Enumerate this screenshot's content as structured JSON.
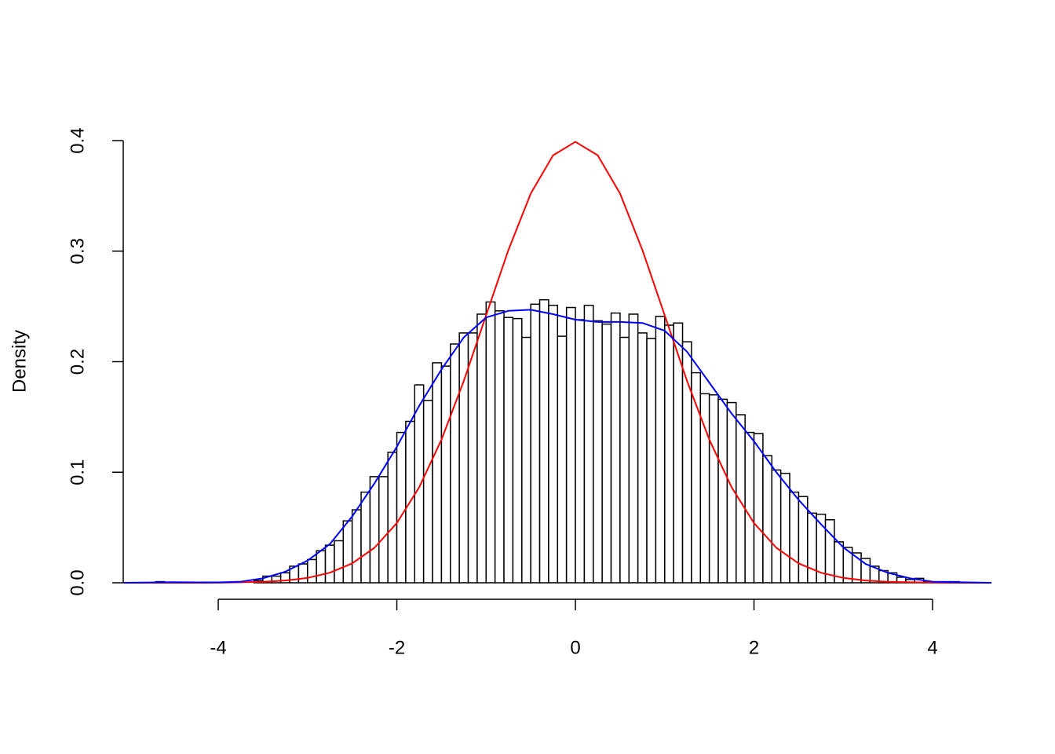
{
  "chart_data": {
    "type": "histogram",
    "y_label": "Density",
    "color": "#000000",
    "fill": "#ffffff",
    "bins": [
      -4.7,
      -4.6,
      -4.5,
      -4.4,
      -4.3,
      -4.2,
      -4.1,
      -4.0,
      -3.9,
      -3.8,
      -3.7,
      -3.6,
      -3.5,
      -3.4,
      -3.3,
      -3.2,
      -3.1,
      -3.0,
      -2.9,
      -2.8,
      -2.7,
      -2.6,
      -2.5,
      -2.4,
      -2.3,
      -2.2,
      -2.1,
      -2.0,
      -1.9,
      -1.8,
      -1.7,
      -1.6,
      -1.5,
      -1.4,
      -1.3,
      -1.2,
      -1.1,
      -1.0,
      -0.9,
      -0.8,
      -0.7,
      -0.6,
      -0.5,
      -0.4,
      -0.3,
      -0.2,
      -0.1,
      0.0,
      0.1,
      0.2,
      0.3,
      0.4,
      0.5,
      0.6,
      0.7,
      0.8,
      0.9,
      1.0,
      1.1,
      1.2,
      1.3,
      1.4,
      1.5,
      1.6,
      1.7,
      1.8,
      1.9,
      2.0,
      2.1,
      2.2,
      2.3,
      2.4,
      2.5,
      2.6,
      2.7,
      2.8,
      2.9,
      3.0,
      3.1,
      3.2,
      3.3,
      3.4,
      3.5,
      3.6,
      3.7,
      3.8,
      3.9,
      4.0,
      4.1,
      4.2,
      4.3
    ],
    "values": [
      0.001,
      0,
      0,
      0,
      0,
      0,
      0,
      0,
      0,
      0,
      0,
      0.002,
      0.006,
      0.006,
      0.009,
      0.015,
      0.017,
      0.021,
      0.029,
      0.034,
      0.038,
      0.056,
      0.066,
      0.082,
      0.096,
      0.096,
      0.118,
      0.136,
      0.146,
      0.179,
      0.165,
      0.199,
      0.196,
      0.216,
      0.226,
      0.226,
      0.243,
      0.254,
      0.246,
      0.24,
      0.239,
      0.222,
      0.252,
      0.256,
      0.251,
      0.223,
      0.249,
      0.238,
      0.251,
      0.237,
      0.234,
      0.244,
      0.222,
      0.243,
      0.226,
      0.221,
      0.241,
      0.233,
      0.235,
      0.218,
      0.19,
      0.171,
      0.17,
      0.166,
      0.163,
      0.152,
      0.136,
      0.135,
      0.115,
      0.102,
      0.099,
      0.082,
      0.078,
      0.063,
      0.062,
      0.057,
      0.037,
      0.032,
      0.027,
      0.022,
      0.015,
      0.011,
      0.009,
      0.005,
      0.003,
      0.004,
      0.001,
      0,
      0.001,
      0.001
    ],
    "curves": [
      {
        "color": "#ff0000",
        "x": [
          -5.06,
          -4.75,
          -4.5,
          -4.25,
          -4,
          -3.75,
          -3.5,
          -3.25,
          -3,
          -2.75,
          -2.5,
          -2.25,
          -2,
          -1.75,
          -1.5,
          -1.25,
          -1,
          -0.75,
          -0.5,
          -0.25,
          0,
          0.25,
          0.5,
          0.75,
          1,
          1.25,
          1.5,
          1.75,
          2,
          2.25,
          2.5,
          2.75,
          3,
          3.25,
          3.5,
          3.75,
          4,
          4.25,
          4.5,
          4.66
        ],
        "values": [
          0,
          0,
          0,
          0,
          0.0001,
          0.0004,
          0.0009,
          0.002,
          0.0044,
          0.0091,
          0.0175,
          0.0317,
          0.054,
          0.0863,
          0.1295,
          0.1826,
          0.242,
          0.3011,
          0.3521,
          0.3867,
          0.3989,
          0.3867,
          0.3521,
          0.3011,
          0.242,
          0.1826,
          0.1295,
          0.0863,
          0.054,
          0.0317,
          0.0175,
          0.0091,
          0.0044,
          0.002,
          0.0009,
          0.0004,
          0.0001,
          0,
          0,
          0
        ]
      },
      {
        "color": "#0000ff",
        "x": [
          -5.06,
          -4.5,
          -4,
          -3.75,
          -3.5,
          -3.25,
          -3,
          -2.75,
          -2.5,
          -2.25,
          -2,
          -1.75,
          -1.5,
          -1.25,
          -1,
          -0.75,
          -0.5,
          -0.25,
          0,
          0.25,
          0.5,
          0.75,
          1,
          1.25,
          1.5,
          1.75,
          2,
          2.25,
          2.5,
          2.75,
          3,
          3.25,
          3.5,
          3.75,
          4,
          4.25,
          4.66
        ],
        "values": [
          0,
          0.0005,
          0.0003,
          0.001,
          0.004,
          0.01,
          0.02,
          0.035,
          0.06,
          0.09,
          0.123,
          0.16,
          0.193,
          0.222,
          0.24,
          0.246,
          0.247,
          0.243,
          0.238,
          0.236,
          0.236,
          0.235,
          0.228,
          0.209,
          0.181,
          0.153,
          0.128,
          0.1,
          0.075,
          0.053,
          0.032,
          0.017,
          0.009,
          0.004,
          0.001,
          0.0005,
          0
        ]
      }
    ],
    "xlim": [
      -5.064,
      4.659
    ],
    "ylim": [
      -0.016,
      0.416
    ],
    "xticks": [
      -4,
      -2,
      0,
      2,
      4
    ],
    "yticks": [
      {
        "value": 0,
        "label": "0.0"
      },
      0.1,
      0.2,
      0.3,
      0.4
    ]
  }
}
